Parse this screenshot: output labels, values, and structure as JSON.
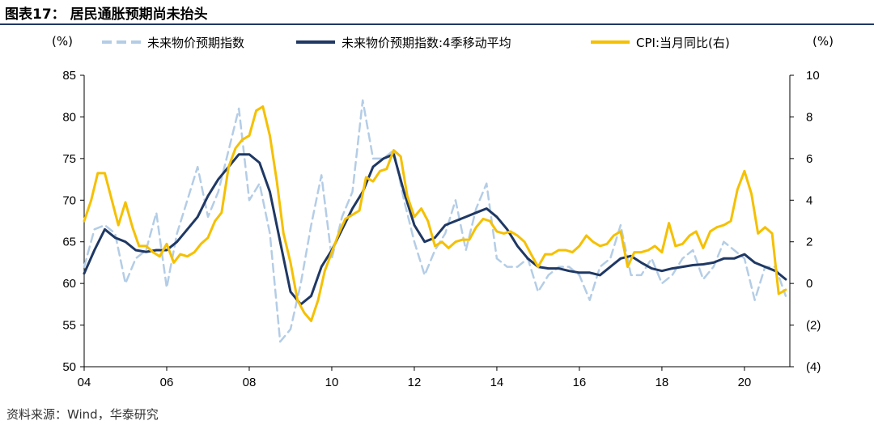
{
  "title": "图表17： 居民通胀预期尚未抬头",
  "source": "资料来源：Wind，华泰研究",
  "units": {
    "left": "(%)",
    "right": "(%)"
  },
  "colors": {
    "expectation": "#b4cde6",
    "ma4": "#1f3864",
    "cpi": "#f5c000"
  },
  "chart_data": {
    "type": "line",
    "title": "",
    "xlim": [
      2004,
      2021.1
    ],
    "ylim": [
      50,
      85
    ],
    "y2lim": [
      -4,
      10
    ],
    "x_ticks": [
      2004,
      2006,
      2008,
      2010,
      2012,
      2014,
      2016,
      2018,
      2020
    ],
    "x_tick_labels": [
      "04",
      "06",
      "08",
      "10",
      "12",
      "14",
      "16",
      "18",
      "20"
    ],
    "y_ticks": [
      50,
      55,
      60,
      65,
      70,
      75,
      80,
      85
    ],
    "y_tick_labels": [
      "50",
      "55",
      "60",
      "65",
      "70",
      "75",
      "80",
      "85"
    ],
    "y2_ticks": [
      -4,
      -2,
      0,
      2,
      4,
      6,
      8,
      10
    ],
    "y2_tick_labels": [
      "(4)",
      "(2)",
      "0",
      "2",
      "4",
      "6",
      "8",
      "10"
    ],
    "legend_position": "top",
    "grid": false,
    "series": [
      {
        "name": "未来物价预期指数",
        "axis": "left",
        "style": "dashed",
        "x": [
          2004.0,
          2004.25,
          2004.5,
          2004.75,
          2005.0,
          2005.25,
          2005.5,
          2005.75,
          2006.0,
          2006.25,
          2006.5,
          2006.75,
          2007.0,
          2007.25,
          2007.5,
          2007.75,
          2008.0,
          2008.25,
          2008.5,
          2008.75,
          2009.0,
          2009.25,
          2009.5,
          2009.75,
          2010.0,
          2010.25,
          2010.5,
          2010.75,
          2011.0,
          2011.25,
          2011.5,
          2011.75,
          2012.0,
          2012.25,
          2012.5,
          2012.75,
          2013.0,
          2013.25,
          2013.5,
          2013.75,
          2014.0,
          2014.25,
          2014.5,
          2014.75,
          2015.0,
          2015.25,
          2015.5,
          2015.75,
          2016.0,
          2016.25,
          2016.5,
          2016.75,
          2017.0,
          2017.25,
          2017.5,
          2017.75,
          2018.0,
          2018.25,
          2018.5,
          2018.75,
          2019.0,
          2019.25,
          2019.5,
          2019.75,
          2020.0,
          2020.25,
          2020.5,
          2020.75,
          2021.0
        ],
        "values": [
          62.0,
          66.5,
          67.0,
          66.0,
          60.0,
          63.0,
          64.0,
          68.5,
          59.5,
          66.0,
          70.0,
          74.0,
          68.0,
          71.0,
          76.0,
          81.0,
          70.0,
          72.0,
          66.0,
          53.0,
          54.5,
          60.0,
          67.0,
          73.0,
          63.0,
          68.0,
          71.0,
          82.0,
          75.0,
          75.0,
          76.0,
          70.0,
          65.0,
          61.0,
          64.0,
          66.0,
          70.0,
          64.0,
          69.0,
          72.0,
          63.0,
          62.0,
          62.0,
          63.0,
          59.0,
          61.0,
          62.0,
          62.0,
          61.0,
          58.0,
          62.0,
          63.0,
          67.0,
          61.0,
          61.0,
          63.0,
          60.0,
          61.0,
          63.0,
          64.0,
          60.5,
          62.0,
          65.0,
          64.0,
          63.0,
          58.0,
          62.0,
          62.0,
          58.5
        ]
      },
      {
        "name": "未来物价预期指数:4季移动平均",
        "axis": "left",
        "style": "solid",
        "x": [
          2004.0,
          2004.25,
          2004.5,
          2004.75,
          2005.0,
          2005.25,
          2005.5,
          2005.75,
          2006.0,
          2006.25,
          2006.5,
          2006.75,
          2007.0,
          2007.25,
          2007.5,
          2007.75,
          2008.0,
          2008.25,
          2008.5,
          2008.75,
          2009.0,
          2009.25,
          2009.5,
          2009.75,
          2010.0,
          2010.25,
          2010.5,
          2010.75,
          2011.0,
          2011.25,
          2011.5,
          2011.75,
          2012.0,
          2012.25,
          2012.5,
          2012.75,
          2013.0,
          2013.25,
          2013.5,
          2013.75,
          2014.0,
          2014.25,
          2014.5,
          2014.75,
          2015.0,
          2015.25,
          2015.5,
          2015.75,
          2016.0,
          2016.25,
          2016.5,
          2016.75,
          2017.0,
          2017.25,
          2017.5,
          2017.75,
          2018.0,
          2018.25,
          2018.5,
          2018.75,
          2019.0,
          2019.25,
          2019.5,
          2019.75,
          2020.0,
          2020.25,
          2020.5,
          2020.75,
          2021.0
        ],
        "values": [
          61.2,
          64.0,
          66.5,
          65.5,
          65.0,
          64.0,
          63.8,
          64.0,
          64.0,
          65.0,
          66.5,
          68.0,
          70.5,
          72.5,
          74.0,
          75.5,
          75.5,
          74.5,
          71.0,
          65.0,
          59.0,
          57.5,
          58.5,
          62.0,
          64.0,
          66.5,
          69.0,
          71.0,
          74.0,
          75.0,
          75.5,
          71.0,
          67.0,
          65.0,
          65.5,
          67.0,
          67.5,
          68.0,
          68.5,
          69.0,
          68.0,
          66.5,
          64.5,
          63.0,
          62.0,
          61.8,
          61.8,
          61.5,
          61.3,
          61.3,
          61.0,
          62.0,
          63.0,
          63.3,
          62.5,
          61.8,
          61.5,
          61.8,
          62.0,
          62.2,
          62.3,
          62.5,
          63.0,
          63.0,
          63.5,
          62.5,
          62.0,
          61.5,
          60.5
        ]
      },
      {
        "name": "CPI:当月同比(右)",
        "axis": "right",
        "style": "solid",
        "x": [
          2004.0,
          2004.17,
          2004.33,
          2004.5,
          2004.67,
          2004.83,
          2005.0,
          2005.17,
          2005.33,
          2005.5,
          2005.67,
          2005.83,
          2006.0,
          2006.17,
          2006.33,
          2006.5,
          2006.67,
          2006.83,
          2007.0,
          2007.17,
          2007.33,
          2007.5,
          2007.67,
          2007.83,
          2008.0,
          2008.17,
          2008.33,
          2008.5,
          2008.67,
          2008.83,
          2009.0,
          2009.17,
          2009.33,
          2009.5,
          2009.67,
          2009.83,
          2010.0,
          2010.17,
          2010.33,
          2010.5,
          2010.67,
          2010.83,
          2011.0,
          2011.17,
          2011.33,
          2011.5,
          2011.67,
          2011.83,
          2012.0,
          2012.17,
          2012.33,
          2012.5,
          2012.67,
          2012.83,
          2013.0,
          2013.17,
          2013.33,
          2013.5,
          2013.67,
          2013.83,
          2014.0,
          2014.17,
          2014.33,
          2014.5,
          2014.67,
          2014.83,
          2015.0,
          2015.17,
          2015.33,
          2015.5,
          2015.67,
          2015.83,
          2016.0,
          2016.17,
          2016.33,
          2016.5,
          2016.67,
          2016.83,
          2017.0,
          2017.17,
          2017.33,
          2017.5,
          2017.67,
          2017.83,
          2018.0,
          2018.17,
          2018.33,
          2018.5,
          2018.67,
          2018.83,
          2019.0,
          2019.17,
          2019.33,
          2019.5,
          2019.67,
          2019.83,
          2020.0,
          2020.17,
          2020.33,
          2020.5,
          2020.67,
          2020.83,
          2021.0
        ],
        "values": [
          3.0,
          4.0,
          5.3,
          5.3,
          4.0,
          2.8,
          3.9,
          2.7,
          1.8,
          1.8,
          1.5,
          1.3,
          1.9,
          1.0,
          1.4,
          1.3,
          1.5,
          1.9,
          2.2,
          3.0,
          3.4,
          5.6,
          6.5,
          6.9,
          7.1,
          8.3,
          8.5,
          7.1,
          4.9,
          2.4,
          1.0,
          -0.8,
          -1.4,
          -1.8,
          -0.8,
          0.6,
          1.5,
          2.4,
          3.1,
          3.3,
          3.5,
          5.1,
          4.9,
          5.4,
          5.5,
          6.4,
          6.1,
          4.2,
          3.2,
          3.6,
          3.0,
          1.8,
          2.0,
          1.7,
          2.0,
          2.1,
          2.1,
          2.7,
          3.1,
          3.0,
          2.5,
          2.4,
          2.5,
          2.3,
          2.0,
          1.4,
          0.8,
          1.4,
          1.4,
          1.6,
          1.6,
          1.5,
          1.8,
          2.3,
          2.0,
          1.8,
          1.9,
          2.3,
          2.5,
          0.8,
          1.5,
          1.5,
          1.6,
          1.8,
          1.5,
          2.9,
          1.8,
          1.9,
          2.3,
          2.5,
          1.7,
          2.5,
          2.7,
          2.8,
          3.0,
          4.5,
          5.4,
          4.3,
          2.4,
          2.7,
          2.4,
          -0.5,
          -0.3
        ]
      }
    ]
  }
}
